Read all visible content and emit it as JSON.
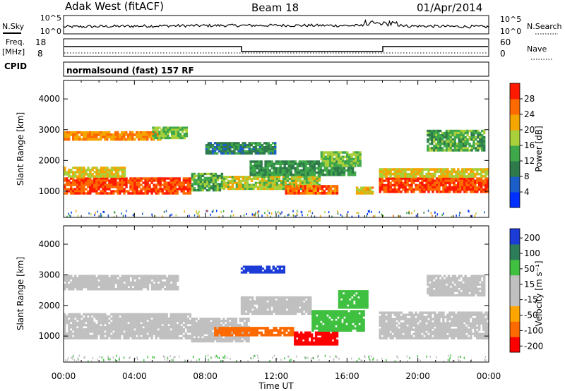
{
  "header": {
    "station": "Adak West (fitACF)",
    "beam": "Beam 18",
    "date": "01/Apr/2014"
  },
  "top_panels": {
    "nsky_label": "N.Sky",
    "nsky_ticks": [
      "10^5",
      "10^0"
    ],
    "nsearch_label": "N.Search",
    "nsearch_ticks": [
      "10^5",
      "10^0"
    ],
    "freq_label": "Freq.",
    "freq_unit": "[MHz]",
    "freq_ticks": [
      "18",
      "8"
    ],
    "nave_label": "Nave",
    "nave_ticks": [
      "60",
      "0"
    ],
    "cpid_label": "CPID",
    "cpid_text": "normalsound (fast) 157 RF"
  },
  "colors": {
    "power": [
      "#0030ff",
      "#1c5ec8",
      "#2f7a4a",
      "#3fa84a",
      "#a9cf3a",
      "#f5a500",
      "#ff6a00",
      "#ff1a00"
    ],
    "velocity": [
      "#ff0000",
      "#ff6a00",
      "#ffa500",
      "#c0c0c0",
      "#c0c0c0",
      "#40c040",
      "#2e7d5a",
      "#1c3cd8"
    ]
  },
  "chart_data": [
    {
      "type": "heatmap",
      "name": "power",
      "ylabel": "Slant Range [km]",
      "yticks": [
        1000,
        2000,
        3000,
        4000
      ],
      "ylim": [
        150,
        4600
      ],
      "xlim": [
        0,
        24
      ],
      "xticks": [
        "00:00",
        "04:00",
        "08:00",
        "12:00",
        "16:00",
        "20:00",
        "00:00"
      ],
      "colorbar_label": "Power [dB]",
      "colorbar_ticks": [
        "4",
        "8",
        "12",
        "16",
        "20",
        "24",
        "28"
      ],
      "colorbar_range": [
        0,
        32
      ],
      "regions": [
        {
          "t0": 0.0,
          "t1": 7.2,
          "r0": 900,
          "r1": 1450,
          "level": 28
        },
        {
          "t0": 0.0,
          "t1": 3.5,
          "r0": 1450,
          "r1": 1800,
          "level": 20
        },
        {
          "t0": 0.0,
          "t1": 5.5,
          "r0": 2650,
          "r1": 2950,
          "level": 24
        },
        {
          "t0": 5.0,
          "t1": 7.0,
          "r0": 2700,
          "r1": 3100,
          "level": 16
        },
        {
          "t0": 7.2,
          "t1": 9.0,
          "r0": 1000,
          "r1": 1600,
          "level": 14
        },
        {
          "t0": 8.0,
          "t1": 12.0,
          "r0": 2200,
          "r1": 2600,
          "level": 10
        },
        {
          "t0": 9.0,
          "t1": 14.5,
          "r0": 1050,
          "r1": 1500,
          "level": 18
        },
        {
          "t0": 10.5,
          "t1": 16.5,
          "r0": 1500,
          "r1": 2000,
          "level": 12
        },
        {
          "t0": 12.5,
          "t1": 15.5,
          "r0": 900,
          "r1": 1200,
          "level": 26
        },
        {
          "t0": 14.5,
          "t1": 16.8,
          "r0": 1800,
          "r1": 2300,
          "level": 16
        },
        {
          "t0": 16.5,
          "t1": 17.5,
          "r0": 900,
          "r1": 1150,
          "level": 22
        },
        {
          "t0": 17.8,
          "t1": 24.0,
          "r0": 950,
          "r1": 1450,
          "level": 28
        },
        {
          "t0": 17.8,
          "t1": 24.0,
          "r0": 1450,
          "r1": 1750,
          "level": 20
        },
        {
          "t0": 20.5,
          "t1": 23.8,
          "r0": 2300,
          "r1": 3000,
          "level": 14
        }
      ]
    },
    {
      "type": "heatmap",
      "name": "velocity",
      "ylabel": "Slant Range [km]",
      "yticks": [
        1000,
        2000,
        3000,
        4000
      ],
      "ylim": [
        150,
        4600
      ],
      "xlim": [
        0,
        24
      ],
      "xticks": [
        "00:00",
        "04:00",
        "08:00",
        "12:00",
        "16:00",
        "20:00",
        "00:00"
      ],
      "xlabel": "Time UT",
      "colorbar_label": "Velocity [m s⁻¹]",
      "colorbar_ticks": [
        "200",
        "100",
        "50",
        "15",
        "-15",
        "-50",
        "-100",
        "-200"
      ],
      "regions": [
        {
          "t0": 0.0,
          "t1": 7.2,
          "r0": 900,
          "r1": 1750,
          "level": 0
        },
        {
          "t0": 0.0,
          "t1": 6.5,
          "r0": 2500,
          "r1": 3000,
          "level": 0
        },
        {
          "t0": 7.2,
          "t1": 10.5,
          "r0": 800,
          "r1": 1600,
          "level": 0
        },
        {
          "t0": 8.5,
          "t1": 13.0,
          "r0": 1000,
          "r1": 1300,
          "level": -60
        },
        {
          "t0": 10.0,
          "t1": 14.0,
          "r0": 1700,
          "r1": 2300,
          "level": 0
        },
        {
          "t0": 13.0,
          "t1": 15.5,
          "r0": 700,
          "r1": 1150,
          "level": -110
        },
        {
          "t0": 14.0,
          "t1": 17.0,
          "r0": 1150,
          "r1": 1850,
          "level": 40
        },
        {
          "t0": 15.5,
          "t1": 17.2,
          "r0": 1900,
          "r1": 2500,
          "level": 40
        },
        {
          "t0": 17.8,
          "t1": 24.0,
          "r0": 900,
          "r1": 1800,
          "level": 0
        },
        {
          "t0": 20.5,
          "t1": 23.8,
          "r0": 2300,
          "r1": 3000,
          "level": 0
        },
        {
          "t0": 10.0,
          "t1": 12.5,
          "r0": 3050,
          "r1": 3300,
          "level": 120
        }
      ]
    }
  ]
}
